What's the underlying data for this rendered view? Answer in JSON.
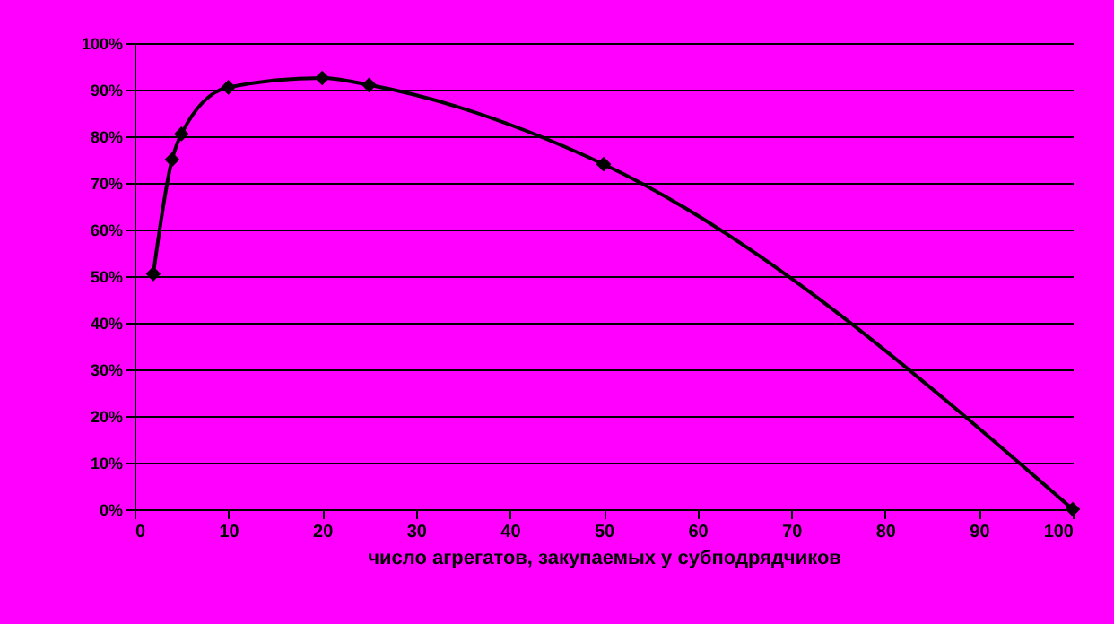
{
  "chart_data": {
    "type": "line",
    "xlabel": "число агрегатов, закупаемых у субподрядчиков",
    "x": [
      2,
      4,
      5,
      10,
      20,
      25,
      50,
      100
    ],
    "series": [
      {
        "color": "#000000",
        "values": [
          50.5,
          75,
          80.5,
          90.5,
          92.5,
          91,
          74,
          0
        ]
      }
    ],
    "xlim": [
      0,
      100
    ],
    "xticks": [
      0,
      10,
      20,
      30,
      40,
      50,
      60,
      70,
      80,
      90,
      100
    ],
    "ylim": [
      0,
      100
    ],
    "yticks": [
      {
        "value": 0,
        "label": "0%"
      },
      {
        "value": 10,
        "label": "10%"
      },
      {
        "value": 20,
        "label": "20%"
      },
      {
        "value": 30,
        "label": "30%"
      },
      {
        "value": 40,
        "label": "40%"
      },
      {
        "value": 50,
        "label": "50%"
      },
      {
        "value": 60,
        "label": "60%"
      },
      {
        "value": 70,
        "label": "70%"
      },
      {
        "value": 80,
        "label": "80%"
      },
      {
        "value": 90,
        "label": "90%"
      },
      {
        "value": 100,
        "label": "100%"
      }
    ],
    "grid": "y",
    "marker": "diamond",
    "line_style": "solid"
  }
}
